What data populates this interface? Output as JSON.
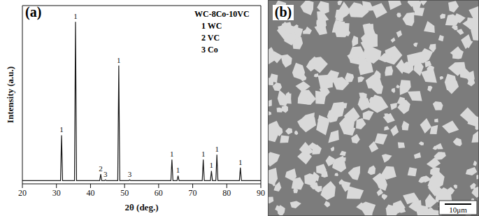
{
  "chart_data": {
    "type": "line",
    "panel_label": "(a)",
    "x_label": "2θ (deg.)",
    "y_label": "Intensity (a.u.)",
    "legend_title": "WC-8Co-10VC",
    "legend_entries": [
      "1 WC",
      "2 VC",
      "3 Co"
    ],
    "xlim": [
      20,
      90
    ],
    "xticks": [
      20,
      30,
      40,
      50,
      60,
      70,
      80,
      90
    ],
    "ylim": [
      0,
      110
    ],
    "yticks": [],
    "tick_labels": "x",
    "grid": false,
    "color": "#1a1a1a",
    "x": [
      20,
      31.2,
      31.5,
      31.8,
      35.3,
      35.6,
      35.9,
      42.7,
      43.0,
      43.3,
      44.1,
      44.4,
      44.7,
      48.0,
      48.3,
      48.6,
      51.2,
      51.5,
      51.8,
      63.6,
      63.9,
      64.2,
      65.4,
      65.7,
      66.0,
      72.8,
      73.1,
      73.4,
      75.2,
      75.5,
      75.8,
      76.8,
      77.1,
      77.4,
      83.7,
      84.0,
      84.3,
      90
    ],
    "values": [
      2,
      2,
      30,
      2,
      2,
      100,
      2,
      2,
      6,
      2,
      2,
      2.5,
      2,
      2,
      73,
      2,
      2,
      2.5,
      2,
      2,
      15,
      2,
      2,
      5,
      2,
      2,
      15,
      2,
      2,
      8,
      2,
      2,
      18,
      2,
      2,
      10,
      2,
      2
    ],
    "annotations": [
      {
        "x": 31.5,
        "y": 30,
        "text": "1"
      },
      {
        "x": 35.6,
        "y": 100,
        "text": "1"
      },
      {
        "x": 43.0,
        "y": 6,
        "text": "2"
      },
      {
        "x": 44.4,
        "y": 2.5,
        "text": "3"
      },
      {
        "x": 48.3,
        "y": 73,
        "text": "1"
      },
      {
        "x": 51.5,
        "y": 2.5,
        "text": "3"
      },
      {
        "x": 63.9,
        "y": 15,
        "text": "1"
      },
      {
        "x": 65.7,
        "y": 5,
        "text": "1"
      },
      {
        "x": 73.1,
        "y": 15,
        "text": "1"
      },
      {
        "x": 75.5,
        "y": 8,
        "text": "1"
      },
      {
        "x": 77.1,
        "y": 18,
        "text": "1"
      },
      {
        "x": 84.0,
        "y": 10,
        "text": "1"
      }
    ]
  },
  "micrograph": {
    "panel_label": "(b)",
    "scale_bar": "10μm"
  }
}
